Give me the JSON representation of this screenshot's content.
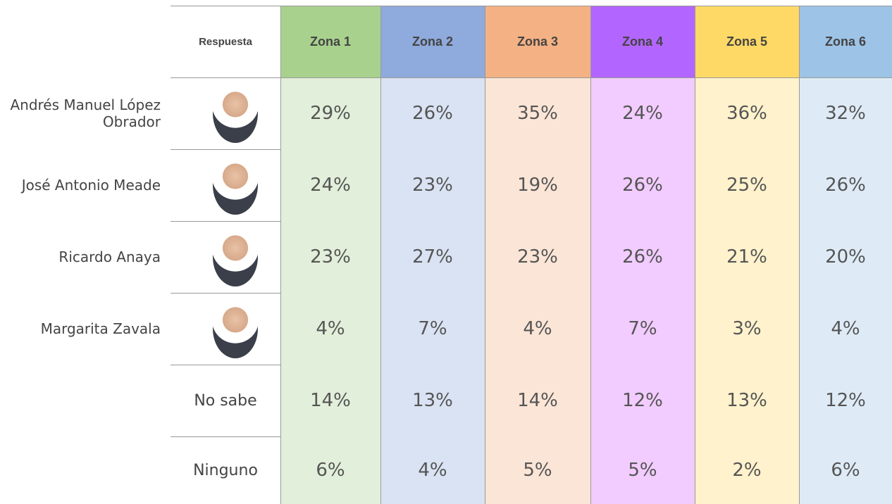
{
  "header": {
    "answer_label": "Respuesta",
    "zones": [
      "Zona 1",
      "Zona 2",
      "Zona 3",
      "Zona 4",
      "Zona 5",
      "Zona 6"
    ]
  },
  "candidates": [
    {
      "name": "Andrés Manuel López Obrador",
      "values": [
        "29%",
        "26%",
        "35%",
        "24%",
        "36%",
        "32%"
      ]
    },
    {
      "name": "José Antonio Meade",
      "values": [
        "24%",
        "23%",
        "19%",
        "26%",
        "25%",
        "26%"
      ]
    },
    {
      "name": "Ricardo Anaya",
      "values": [
        "23%",
        "27%",
        "23%",
        "26%",
        "21%",
        "20%"
      ]
    },
    {
      "name": "Margarita Zavala",
      "values": [
        "4%",
        "7%",
        "4%",
        "7%",
        "3%",
        "4%"
      ]
    }
  ],
  "other_rows": [
    {
      "name": "No sabe",
      "values": [
        "14%",
        "13%",
        "14%",
        "12%",
        "13%",
        "12%"
      ]
    },
    {
      "name": "Ninguno",
      "values": [
        "6%",
        "4%",
        "5%",
        "5%",
        "2%",
        "6%"
      ]
    }
  ]
}
